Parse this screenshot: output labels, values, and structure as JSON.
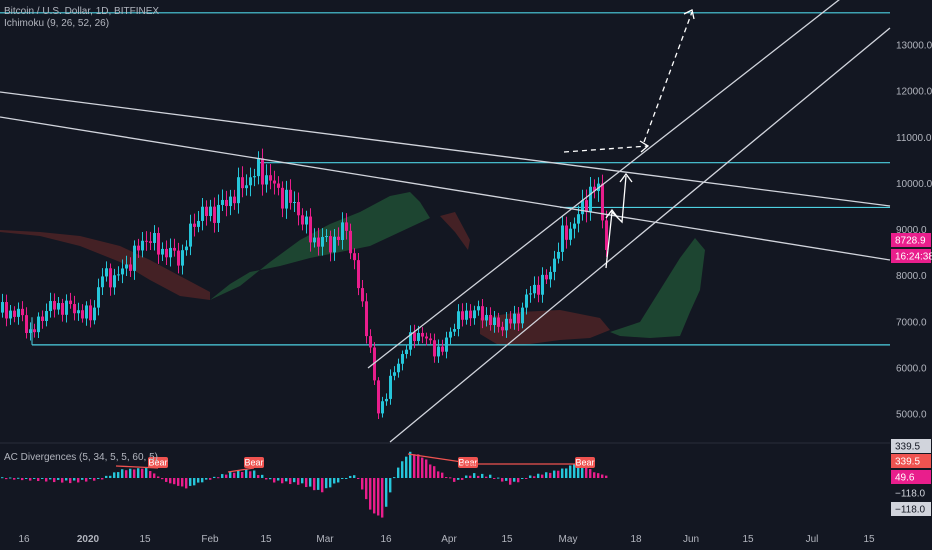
{
  "header": {
    "symbol": "Bitcoin / U.S. Dollar, 1D, BITFINEX",
    "indicator": "Ichimoku (9, 26, 52, 26)"
  },
  "sub_header": {
    "indicator": "AC Divergences (5, 34, 5, 5, 60, 5)"
  },
  "price_labels": {
    "last_price": "8728.9",
    "countdown": "16:24:38"
  },
  "sub_price_labels": {
    "top": "339.5",
    "upper": "339.5",
    "value": "49.6",
    "lower": "−118.0",
    "bottom": "−118.0"
  },
  "divergence_labels": [
    "Bear",
    "Bear",
    "Bear",
    "Bear"
  ],
  "colors": {
    "background": "#131722",
    "up": "#26c6da",
    "down": "#e91e8c",
    "horizontal": "#4dd0e1",
    "trendline": "#d1d4dc",
    "cloud_bull": "#1f4a33",
    "cloud_bear": "#4a2226",
    "badge": "#ef5350"
  },
  "chart_data": {
    "type": "candlestick",
    "x_ticks": [
      "16",
      "2020",
      "15",
      "Feb",
      "15",
      "Mar",
      "16",
      "Apr",
      "15",
      "May",
      "18",
      "Jun",
      "15",
      "Jul",
      "15"
    ],
    "y_ticks": [
      "5000.0",
      "6000.0",
      "7000.0",
      "8000.0",
      "9000.0",
      "10000.0",
      "11000.0",
      "12000.0",
      "13000.0"
    ],
    "ylim": [
      4350,
      13800
    ],
    "horizontal_levels": [
      13700,
      10450,
      9480,
      6500
    ],
    "ac_levels": [
      339.5,
      -118.0
    ],
    "last_price": 8728.9
  }
}
